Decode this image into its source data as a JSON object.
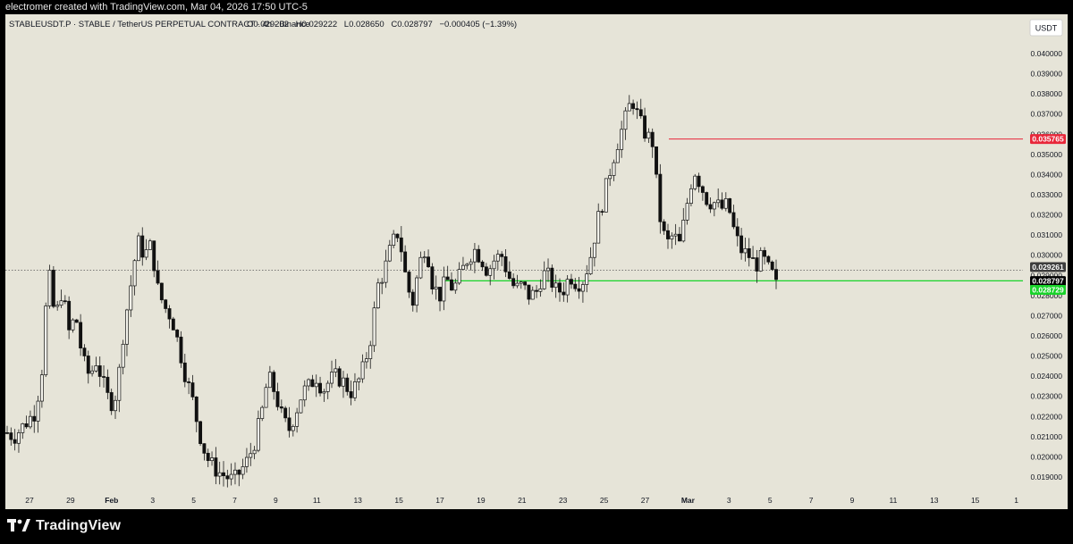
{
  "attribution": "electromer created with TradingView.com, Mar 04, 2026 17:50 UTC-5",
  "brand": "TradingView",
  "chart_data": {
    "type": "candlestick",
    "title": "STABLEUSDT.P · STABLE / TetherUS PERPETUAL CONTRACT · 4h · Binance",
    "ohlc": {
      "open": "O0.029202",
      "high": "H0.029222",
      "low": "L0.028650",
      "close": "C0.028797",
      "change": "−0.000405 (−1.39%)"
    },
    "currency": "USDT",
    "ylim": [
      0.0185,
      0.0415
    ],
    "y_ticks": [
      "0.019000",
      "0.020000",
      "0.021000",
      "0.022000",
      "0.023000",
      "0.024000",
      "0.025000",
      "0.026000",
      "0.027000",
      "0.028000",
      "0.029000",
      "0.030000",
      "0.031000",
      "0.032000",
      "0.033000",
      "0.034000",
      "0.035000",
      "0.036000",
      "0.037000",
      "0.038000",
      "0.039000",
      "0.040000"
    ],
    "x_ticks": [
      "27",
      "29",
      "Feb",
      "3",
      "5",
      "7",
      "9",
      "11",
      "13",
      "15",
      "17",
      "19",
      "21",
      "23",
      "25",
      "27",
      "Mar",
      "3",
      "5",
      "7",
      "9",
      "11",
      "13",
      "15",
      "1"
    ],
    "horizontal_lines": [
      {
        "label": "0.035765",
        "value": 0.035765,
        "color": "#e8273a"
      },
      {
        "label": "0.028729",
        "value": 0.028729,
        "color": "#19d32a"
      }
    ],
    "price_labels": [
      {
        "label": "0.029261",
        "value": 0.029261,
        "color": "#3d3d3d"
      },
      {
        "label": "0.028797",
        "value": 0.028797,
        "color": "#000000"
      }
    ],
    "last_price": 0.028797,
    "candle_path": [
      0.0212,
      0.021,
      0.0214,
      0.0218,
      0.0222,
      0.024,
      0.0293,
      0.0268,
      0.0283,
      0.0262,
      0.027,
      0.0248,
      0.024,
      0.0248,
      0.0236,
      0.0226,
      0.0232,
      0.0264,
      0.0285,
      0.0307,
      0.03,
      0.0305,
      0.0282,
      0.0274,
      0.0269,
      0.0255,
      0.024,
      0.0228,
      0.0212,
      0.02,
      0.0195,
      0.0192,
      0.019,
      0.0188,
      0.0193,
      0.0198,
      0.0207,
      0.022,
      0.024,
      0.0232,
      0.022,
      0.0213,
      0.0222,
      0.0232,
      0.0235,
      0.024,
      0.0233,
      0.0238,
      0.024,
      0.0237,
      0.0232,
      0.0236,
      0.0245,
      0.026,
      0.0285,
      0.0293,
      0.0305,
      0.0312,
      0.029,
      0.0275,
      0.0295,
      0.0306,
      0.0285,
      0.028,
      0.0288,
      0.0283,
      0.029,
      0.0298,
      0.0303,
      0.0299,
      0.0292,
      0.0298,
      0.03,
      0.029,
      0.0283,
      0.0285,
      0.028,
      0.0281,
      0.0291,
      0.0289,
      0.0282,
      0.0283,
      0.029,
      0.0286,
      0.0288,
      0.03,
      0.0317,
      0.033,
      0.0345,
      0.0357,
      0.0367,
      0.0378,
      0.0367,
      0.036,
      0.0356,
      0.032,
      0.0305,
      0.031,
      0.0305,
      0.0325,
      0.0343,
      0.0335,
      0.0327,
      0.0326,
      0.0323,
      0.0325,
      0.031,
      0.0302,
      0.03,
      0.0295,
      0.0299,
      0.0292,
      0.0288
    ]
  }
}
